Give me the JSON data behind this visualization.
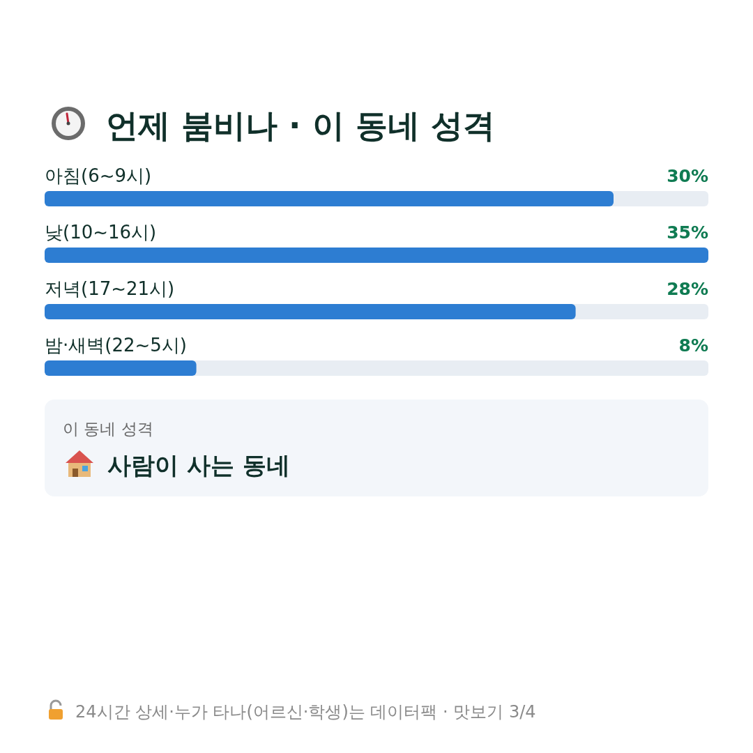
{
  "chart_data": {
    "type": "bar",
    "orientation": "horizontal",
    "title": "언제 붐비나 · 이 동네 성격",
    "categories": [
      "아침(6~9시)",
      "낮(10~16시)",
      "저녁(17~21시)",
      "밤·새벽(22~5시)"
    ],
    "values": [
      30,
      35,
      28,
      8
    ],
    "value_labels": [
      "30%",
      "35%",
      "28%",
      "8%"
    ],
    "color": "#2d7dd2",
    "annotations": [
      "이 동네 성격",
      "사람이 사는 동네",
      "24시간 상세·누가 타나(어르신·학생)는 데이터팩 · 맛보기 3/4"
    ]
  }
}
